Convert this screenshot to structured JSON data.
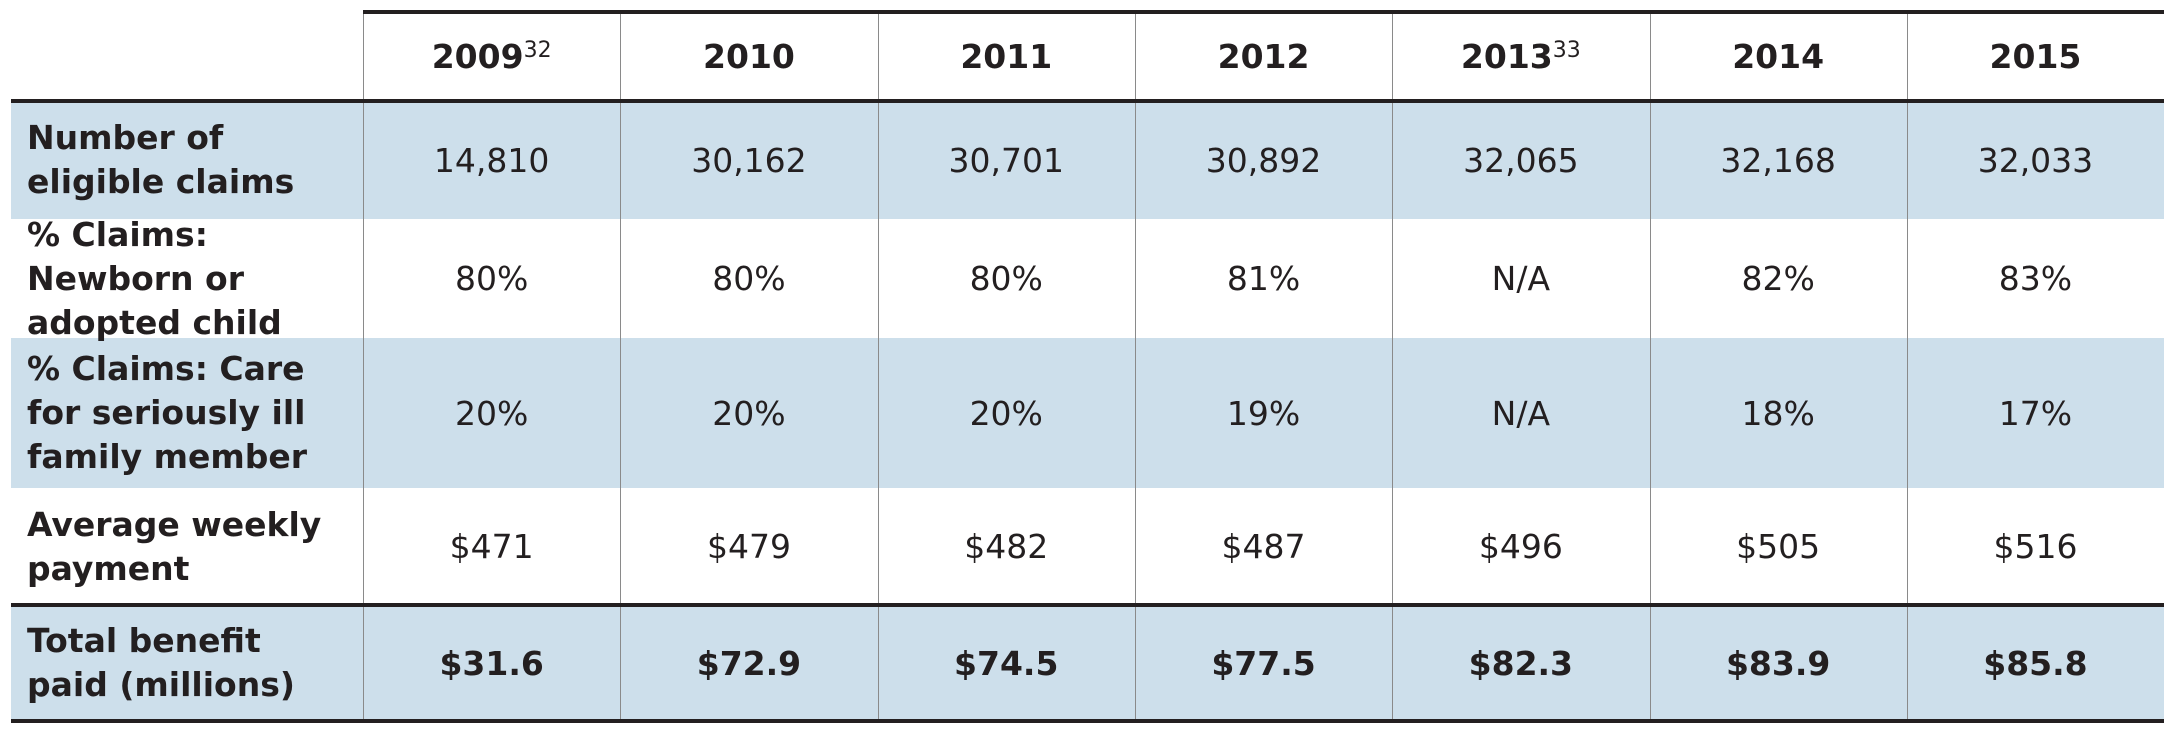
{
  "header": {
    "columns": [
      {
        "year": "2009",
        "note": "32"
      },
      {
        "year": "2010"
      },
      {
        "year": "2011"
      },
      {
        "year": "2012"
      },
      {
        "year": "2013",
        "note": "33"
      },
      {
        "year": "2014"
      },
      {
        "year": "2015"
      }
    ]
  },
  "table": {
    "rows": [
      {
        "label": "Number of eligible claims",
        "cells": [
          "14,810",
          "30,162",
          "30,701",
          "30,892",
          "32,065",
          "32,168",
          "32,033"
        ]
      },
      {
        "label": "% Claims: Newborn or adopted child",
        "cells": [
          "80%",
          "80%",
          "80%",
          "81%",
          "N/A",
          "82%",
          "83%"
        ]
      },
      {
        "label": "% Claims: Care for seriously ill family member",
        "cells": [
          "20%",
          "20%",
          "20%",
          "19%",
          "N/A",
          "18%",
          "17%"
        ]
      },
      {
        "label": "Average weekly payment",
        "cells": [
          "$471",
          "$479",
          "$482",
          "$487",
          "$496",
          "$505",
          "$516"
        ]
      },
      {
        "label": "Total benefit paid (millions)",
        "cells": [
          "$31.6",
          "$72.9",
          "$74.5",
          "$77.5",
          "$82.3",
          "$83.9",
          "$85.8"
        ]
      }
    ]
  }
}
